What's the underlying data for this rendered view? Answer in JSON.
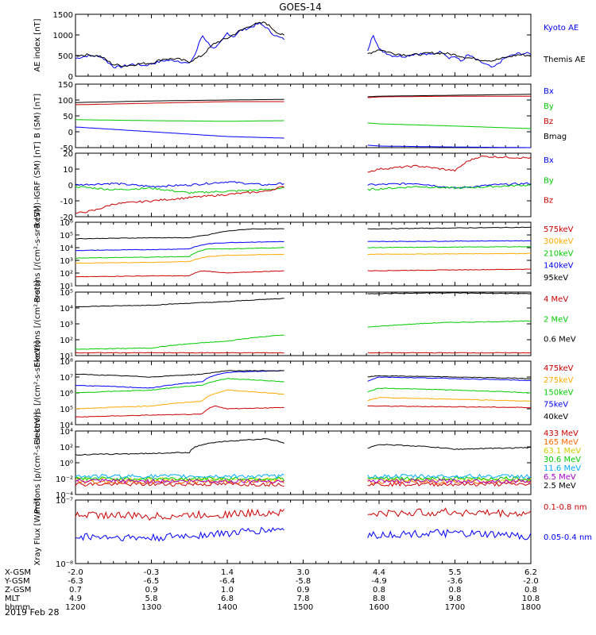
{
  "title": "GOES-14",
  "chart_data": [
    {
      "type": "line",
      "ylabel": "AE index [nT]",
      "ylim": [
        0,
        1500
      ],
      "yticks": [
        "1500",
        "1000",
        "500",
        "0"
      ],
      "series": [
        {
          "name": "Kyoto AE",
          "color": "#0000ff",
          "x": [
            1200,
            1210,
            1220,
            1230,
            1235,
            1245,
            1255,
            1300,
            1310,
            1320,
            1330,
            1335,
            1340,
            1345,
            1350,
            1355,
            1400,
            1405,
            1410,
            1415,
            1420,
            1425,
            1430,
            1435,
            1440,
            1445,
            1450,
            1500,
            1510,
            1520,
            1530,
            1540,
            1550,
            1555,
            1600,
            1610,
            1620,
            1630,
            1640,
            1650,
            1655,
            1700,
            1705,
            1710,
            1720,
            1730,
            1740,
            1750,
            1800
          ],
          "y": [
            430,
            500,
            480,
            230,
            220,
            290,
            260,
            300,
            380,
            380,
            300,
            550,
            1000,
            800,
            650,
            820,
            1050,
            950,
            1100,
            1150,
            1200,
            1280,
            1200,
            1050,
            950,
            900,
            780,
            650,
            620,
            580,
            550,
            500,
            480,
            1050,
            650,
            500,
            480,
            550,
            520,
            600,
            450,
            480,
            350,
            520,
            350,
            200,
            450,
            550,
            550
          ]
        },
        {
          "name": "Themis AE",
          "color": "#000000",
          "x": [
            1200,
            1210,
            1220,
            1230,
            1240,
            1250,
            1300,
            1310,
            1320,
            1330,
            1340,
            1350,
            1400,
            1410,
            1420,
            1430,
            1440,
            1450,
            1500,
            1510,
            1520,
            1530,
            1540,
            1550,
            1600,
            1610,
            1620,
            1630,
            1640,
            1650,
            1700,
            1710,
            1720,
            1730,
            1740,
            1750,
            1800
          ],
          "y": [
            500,
            520,
            480,
            280,
            250,
            300,
            320,
            420,
            420,
            350,
            500,
            800,
            920,
            1100,
            1250,
            1300,
            1050,
            900,
            700,
            620,
            600,
            560,
            560,
            530,
            650,
            560,
            520,
            520,
            560,
            560,
            520,
            450,
            400,
            380,
            450,
            520,
            500
          ]
        }
      ]
    },
    {
      "type": "line",
      "ylabel": "B (SM) [nT]",
      "ylim": [
        -50,
        150
      ],
      "yticks": [
        "150",
        "100",
        "50",
        "0",
        "-50"
      ],
      "series": [
        {
          "name": "Bx",
          "color": "#0000ff",
          "x": [
            1200,
            1300,
            1400,
            1445,
            1550,
            1600,
            1700,
            1800
          ],
          "y": [
            15,
            0,
            -15,
            -20,
            -42,
            -45,
            -48,
            -50
          ]
        },
        {
          "name": "By",
          "color": "#00cc00",
          "x": [
            1200,
            1300,
            1400,
            1445,
            1550,
            1600,
            1700,
            1800
          ],
          "y": [
            38,
            35,
            33,
            35,
            28,
            25,
            18,
            10
          ]
        },
        {
          "name": "Bz",
          "color": "#cc0000",
          "x": [
            1200,
            1300,
            1400,
            1445,
            1550,
            1600,
            1700,
            1800
          ],
          "y": [
            85,
            90,
            95,
            95,
            107,
            110,
            112,
            112
          ]
        },
        {
          "name": "Bmag",
          "color": "#000000",
          "x": [
            1200,
            1300,
            1400,
            1445,
            1550,
            1600,
            1700,
            1800
          ],
          "y": [
            92,
            97,
            100,
            102,
            110,
            112,
            115,
            118
          ]
        }
      ]
    },
    {
      "type": "line",
      "ylabel": "B (SM)-IGRF (SM) [nT]",
      "ylim": [
        -20,
        20
      ],
      "yticks": [
        "20",
        "10",
        "0",
        "-10",
        "-20"
      ],
      "series": [
        {
          "name": "Bx",
          "color": "#0000ff",
          "x": [
            1200,
            1230,
            1300,
            1330,
            1400,
            1430,
            1445,
            1550,
            1630,
            1700,
            1730,
            1800
          ],
          "y": [
            0,
            1,
            -1,
            0,
            2,
            0,
            1,
            0,
            1,
            -2,
            0,
            1
          ]
        },
        {
          "name": "By",
          "color": "#00cc00",
          "x": [
            1200,
            1230,
            1300,
            1330,
            1400,
            1430,
            1445,
            1550,
            1630,
            1700,
            1730,
            1800
          ],
          "y": [
            -1,
            -3,
            -2,
            -5,
            -4,
            -3,
            -2,
            -3,
            -1,
            -2,
            -1,
            0
          ]
        },
        {
          "name": "Bz",
          "color": "#cc0000",
          "x": [
            1200,
            1215,
            1230,
            1300,
            1330,
            1400,
            1430,
            1445,
            1550,
            1600,
            1630,
            1700,
            1710,
            1720,
            1800
          ],
          "y": [
            -18,
            -16,
            -12,
            -10,
            -8,
            -6,
            -4,
            -1,
            8,
            10,
            12,
            9,
            15,
            18,
            17
          ]
        }
      ]
    },
    {
      "type": "line",
      "ylabel": "Protons [/(cm²-s-sr-keV)]",
      "scale": "log",
      "ylim": [
        10,
        1000000
      ],
      "yticks": [
        "10⁶",
        "10⁵",
        "10⁴",
        "10³",
        "10²",
        "10¹"
      ],
      "series": [
        {
          "name": "575keV",
          "color": "#cc0000",
          "x": [
            1200,
            1300,
            1330,
            1340,
            1400,
            1445,
            1550,
            1800
          ],
          "y": [
            50,
            60,
            60,
            150,
            100,
            150,
            150,
            200
          ]
        },
        {
          "name": "300keV",
          "color": "#ffaa00",
          "x": [
            1200,
            1300,
            1330,
            1345,
            1400,
            1445,
            1550,
            1800
          ],
          "y": [
            600,
            700,
            800,
            2000,
            2500,
            3000,
            3000,
            3500
          ]
        },
        {
          "name": "210keV",
          "color": "#00cc00",
          "x": [
            1200,
            1300,
            1330,
            1345,
            1400,
            1445,
            1550,
            1800
          ],
          "y": [
            1500,
            1800,
            2000,
            8000,
            8000,
            10000,
            10000,
            12000
          ]
        },
        {
          "name": "140keV",
          "color": "#0000ff",
          "x": [
            1200,
            1300,
            1330,
            1345,
            1400,
            1445,
            1550,
            1800
          ],
          "y": [
            6000,
            7000,
            8000,
            20000,
            25000,
            30000,
            30000,
            35000
          ]
        },
        {
          "name": "95keV",
          "color": "#000000",
          "x": [
            1200,
            1300,
            1330,
            1345,
            1400,
            1420,
            1445,
            1550,
            1800
          ],
          "y": [
            50000,
            60000,
            60000,
            100000,
            200000,
            300000,
            300000,
            300000,
            400000
          ]
        }
      ]
    },
    {
      "type": "line",
      "ylabel": "Electrons [/(cm²-s-sr)]",
      "scale": "log",
      "ylim": [
        10,
        100000
      ],
      "yticks": [
        "10⁵",
        "10⁴",
        "10³",
        "10²",
        "10¹"
      ],
      "series": [
        {
          "name": "4 MeV",
          "color": "#cc0000",
          "x": [
            1200,
            1445,
            1550,
            1800
          ],
          "y": [
            15,
            15,
            15,
            15
          ]
        },
        {
          "name": "2 MeV",
          "color": "#00cc00",
          "x": [
            1200,
            1300,
            1400,
            1445,
            1550,
            1650,
            1800
          ],
          "y": [
            25,
            30,
            80,
            200,
            600,
            1200,
            1500
          ]
        },
        {
          "name": "0.6 MeV",
          "color": "#000000",
          "x": [
            1200,
            1300,
            1400,
            1445,
            1550,
            1650,
            1800
          ],
          "y": [
            12000,
            15000,
            25000,
            40000,
            80000,
            90000,
            80000
          ]
        }
      ]
    },
    {
      "type": "line",
      "ylabel": "Electrons [/(cm²-s-sr-keV)]",
      "scale": "log",
      "ylim": [
        10000,
        100000000
      ],
      "yticks": [
        "10⁸",
        "10⁷",
        "10⁶",
        "10⁵",
        "10⁴"
      ],
      "series": [
        {
          "name": "475keV",
          "color": "#cc0000",
          "x": [
            1200,
            1300,
            1340,
            1350,
            1400,
            1445,
            1550,
            1800
          ],
          "y": [
            30000,
            40000,
            45000,
            150000,
            100000,
            120000,
            150000,
            120000
          ]
        },
        {
          "name": "275keV",
          "color": "#ffaa00",
          "x": [
            1200,
            1300,
            1340,
            1400,
            1445,
            1550,
            1600,
            1800
          ],
          "y": [
            100000,
            150000,
            300000,
            1500000,
            800000,
            300000,
            500000,
            300000
          ]
        },
        {
          "name": "150keV",
          "color": "#00cc00",
          "x": [
            1200,
            1300,
            1340,
            1400,
            1445,
            1550,
            1600,
            1800
          ],
          "y": [
            1000000,
            1500000,
            3000000,
            8000000,
            5000000,
            1000000,
            2000000,
            1000000
          ]
        },
        {
          "name": "75keV",
          "color": "#0000ff",
          "x": [
            1200,
            1300,
            1340,
            1400,
            1445,
            1550,
            1600,
            1800
          ],
          "y": [
            3000000,
            2000000,
            5000000,
            20000000,
            25000000,
            5000000,
            10000000,
            6000000
          ]
        },
        {
          "name": "40keV",
          "color": "#000000",
          "x": [
            1200,
            1300,
            1340,
            1400,
            1445,
            1550,
            1600,
            1800
          ],
          "y": [
            15000000,
            10000000,
            15000000,
            25000000,
            25000000,
            10000000,
            12000000,
            8000000
          ]
        }
      ]
    },
    {
      "type": "line",
      "ylabel": "Protons [p/(cm²-s-sr-keV)]",
      "scale": "log",
      "ylim": [
        0.0001,
        10000
      ],
      "yticks": [
        "10⁴",
        "10²",
        "10⁰",
        "10⁻²",
        "10⁻⁴"
      ],
      "series": [
        {
          "name": "433 MeV",
          "color": "#cc0000",
          "x": [
            1200,
            1445,
            1550,
            1800
          ],
          "y": [
            0.002,
            0.002,
            0.002,
            0.002
          ]
        },
        {
          "name": "165 MeV",
          "color": "#ff6600",
          "x": [
            1200,
            1445,
            1550,
            1800
          ],
          "y": [
            0.004,
            0.004,
            0.004,
            0.004
          ]
        },
        {
          "name": "63.1 MeV",
          "color": "#dddd00",
          "x": [
            1200,
            1445,
            1550,
            1800
          ],
          "y": [
            0.008,
            0.008,
            0.008,
            0.008
          ]
        },
        {
          "name": "30.6 MeV",
          "color": "#00cc00",
          "x": [
            1200,
            1445,
            1550,
            1800
          ],
          "y": [
            0.01,
            0.01,
            0.01,
            0.01
          ]
        },
        {
          "name": "11.6 MeV",
          "color": "#00aaff",
          "x": [
            1200,
            1445,
            1550,
            1800
          ],
          "y": [
            0.02,
            0.02,
            0.02,
            0.02
          ]
        },
        {
          "name": "6.5 MeV",
          "color": "#aa00cc",
          "x": [
            1200,
            1445,
            1550,
            1800
          ],
          "y": [
            0.005,
            0.005,
            0.005,
            0.005
          ]
        },
        {
          "name": "2.5 MeV",
          "color": "#000000",
          "x": [
            1200,
            1300,
            1330,
            1400,
            1430,
            1445,
            1550,
            1600,
            1700,
            1800
          ],
          "y": [
            10,
            15,
            20,
            500,
            1000,
            300,
            50,
            200,
            50,
            80
          ]
        }
      ]
    },
    {
      "type": "line",
      "ylabel": "Xray Flux [W/m²]",
      "scale": "log",
      "ylim": [
        1e-08,
        1e-07
      ],
      "yticks": [
        "10⁻⁷",
        "10⁻⁸"
      ],
      "series": [
        {
          "name": "0.1-0.8 nm",
          "color": "#cc0000",
          "x": [
            1200,
            1300,
            1400,
            1445,
            1550,
            1650,
            1800
          ],
          "y": [
            6e-08,
            5.5e-08,
            6e-08,
            6.5e-08,
            6e-08,
            6.5e-08,
            6e-08
          ]
        },
        {
          "name": "0.05-0.4 nm",
          "color": "#0000ff",
          "x": [
            1200,
            1300,
            1400,
            1445,
            1550,
            1650,
            1800
          ],
          "y": [
            2.7e-08,
            2.5e-08,
            3e-08,
            3.5e-08,
            2.8e-08,
            3e-08,
            2.7e-08
          ]
        }
      ]
    }
  ],
  "gap": [
    1445,
    1550
  ],
  "x_axis": {
    "xlim": [
      1200,
      1800
    ],
    "row_labels": [
      "X-GSM",
      "Y-GSM",
      "Z-GSM",
      "MLT",
      "hhmm"
    ],
    "columns": [
      {
        "t": 1200,
        "vals": [
          "-2.0",
          "-6.3",
          "0.7",
          "4.9",
          "1200"
        ]
      },
      {
        "t": 1300,
        "vals": [
          "-0.3",
          "-6.5",
          "0.9",
          "5.8",
          "1300"
        ]
      },
      {
        "t": 1400,
        "vals": [
          "1.4",
          "-6.4",
          "1.0",
          "6.8",
          "1400"
        ]
      },
      {
        "t": 1500,
        "vals": [
          "3.0",
          "-5.8",
          "0.9",
          "7.8",
          "1500"
        ]
      },
      {
        "t": 1600,
        "vals": [
          "4.4",
          "-4.9",
          "0.8",
          "8.8",
          "1600"
        ]
      },
      {
        "t": 1700,
        "vals": [
          "5.5",
          "-3.6",
          "0.8",
          "9.8",
          "1700"
        ]
      },
      {
        "t": 1800,
        "vals": [
          "6.2",
          "-2.0",
          "0.8",
          "10.8",
          "1800"
        ]
      }
    ],
    "date": "2019 Feb 28"
  }
}
